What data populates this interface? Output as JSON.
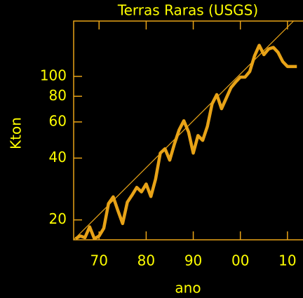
{
  "chart_data": {
    "type": "line",
    "title": "Terras Raras (USGS)",
    "x_label": "ano",
    "y_label": "Kton",
    "log_y": true,
    "x": [
      1965,
      1966,
      1967,
      1968,
      1969,
      1970,
      1971,
      1972,
      1973,
      1974,
      1975,
      1976,
      1977,
      1978,
      1979,
      1980,
      1981,
      1982,
      1983,
      1984,
      1985,
      1986,
      1987,
      1988,
      1989,
      1990,
      1991,
      1992,
      1993,
      1994,
      1995,
      1996,
      1997,
      1998,
      1999,
      2000,
      2001,
      2002,
      2003,
      2004,
      2005,
      2006,
      2007,
      2008,
      2009,
      2010,
      2011,
      2012
    ],
    "series": [
      {
        "name": "Terras Raras",
        "color": "#e8a317",
        "values": [
          16.2,
          16.7,
          16.4,
          18.5,
          16.2,
          16.7,
          18.2,
          24,
          25.9,
          22.2,
          19.2,
          24.4,
          26.4,
          28.8,
          27.4,
          29.9,
          26,
          31.6,
          42.3,
          44.4,
          39.1,
          46.9,
          54.9,
          60.8,
          53.6,
          42.3,
          51.5,
          48.8,
          57.1,
          73.5,
          81.5,
          69.6,
          78.3,
          88.1,
          93.9,
          99.2,
          99.2,
          105.7,
          125.6,
          141.6,
          127.6,
          136,
          138.4,
          130.9,
          118,
          111.7,
          111.7,
          111.7
        ]
      }
    ],
    "trend": {
      "color": "#e8a317",
      "x": [
        1964.6,
        2011.3
      ],
      "values": [
        16,
        186
      ]
    },
    "xlim": [
      1964.6,
      2013.3
    ],
    "ylim": [
      16,
      186
    ],
    "xticks": [
      {
        "value": 1970,
        "label": "70"
      },
      {
        "value": 1980,
        "label": "80"
      },
      {
        "value": 1990,
        "label": "90"
      },
      {
        "value": 2000,
        "label": "00"
      },
      {
        "value": 2010,
        "label": "10"
      }
    ],
    "yticks": [
      20,
      40,
      60,
      80,
      100
    ],
    "axis_color": "#e8a317"
  }
}
